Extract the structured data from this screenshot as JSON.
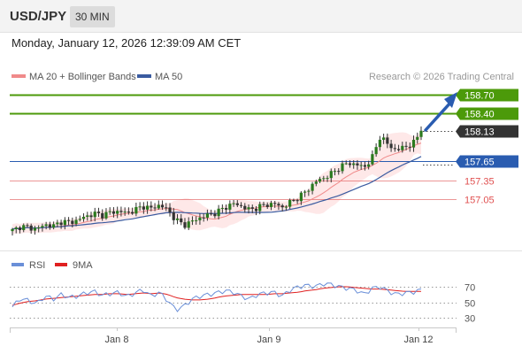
{
  "header": {
    "pair": "USD/JPY",
    "interval": "30 MIN"
  },
  "datetime": "Monday, January 12, 2026 12:39:09 AM CET",
  "legend": {
    "ma20": "MA 20 + Bollinger Bands",
    "ma50": "MA 50",
    "credit": "Research © 2026 Trading Central",
    "rsi": "RSI",
    "rsi_ma": "9MA"
  },
  "colors": {
    "resistance": "#4c9a0a",
    "support": "#e05050",
    "pivot": "#2a5cb0",
    "last": "#333333",
    "ma20": "#f08a8a",
    "ma50": "#3a5ba0",
    "rsi": "#6a8fd8",
    "rsi_ma": "#e02020",
    "band_fill": "#fde0e0",
    "arrow": "#2a5cb0"
  },
  "chart_data": {
    "type": "candlestick",
    "levels": [
      {
        "label": "158.70",
        "value": 158.7,
        "kind": "resistance"
      },
      {
        "label": "158.40",
        "value": 158.4,
        "kind": "resistance"
      },
      {
        "label": "158.13",
        "value": 158.13,
        "kind": "last"
      },
      {
        "label": "157.65",
        "value": 157.65,
        "kind": "pivot"
      },
      {
        "label": "157.35",
        "value": 157.35,
        "kind": "support"
      },
      {
        "label": "157.05",
        "value": 157.05,
        "kind": "support"
      }
    ],
    "price_path": [
      156.55,
      156.62,
      156.6,
      156.58,
      156.65,
      156.62,
      156.7,
      156.68,
      156.72,
      156.78,
      156.82,
      156.8,
      156.84,
      156.86,
      156.83,
      156.88,
      156.94,
      156.9,
      156.96,
      156.88,
      156.72,
      156.64,
      156.7,
      156.76,
      156.8,
      156.84,
      156.92,
      156.98,
      156.94,
      156.88,
      156.92,
      156.96,
      156.98,
      156.92,
      157.0,
      157.08,
      157.18,
      157.32,
      157.38,
      157.45,
      157.55,
      157.62,
      157.6,
      157.55,
      157.7,
      158.05,
      157.9,
      157.82,
      157.88,
      157.92,
      158.13
    ],
    "rsi": {
      "levels": [
        70,
        50,
        30
      ],
      "ylim": [
        20,
        80
      ],
      "values": [
        44,
        55,
        52,
        48,
        58,
        54,
        60,
        56,
        58,
        62,
        64,
        59,
        61,
        63,
        57,
        62,
        66,
        58,
        63,
        52,
        40,
        45,
        54,
        58,
        60,
        62,
        65,
        63,
        58,
        54,
        60,
        62,
        63,
        58,
        66,
        70,
        72,
        70,
        74,
        73,
        70,
        68,
        66,
        60,
        68,
        70,
        64,
        60,
        62,
        63,
        66
      ],
      "ma": [
        46,
        49,
        51,
        52,
        54,
        55,
        56,
        57,
        58,
        59,
        60,
        60,
        61,
        61,
        60,
        61,
        62,
        61,
        62,
        60,
        56,
        54,
        53,
        53,
        54,
        56,
        58,
        59,
        60,
        60,
        60,
        60,
        61,
        61,
        62,
        63,
        65,
        66,
        68,
        69,
        70,
        70,
        69,
        68,
        67,
        67,
        66,
        65,
        64,
        64,
        64
      ]
    },
    "x_labels": [
      "Jan 8",
      "Jan 9",
      "Jan 12"
    ]
  }
}
